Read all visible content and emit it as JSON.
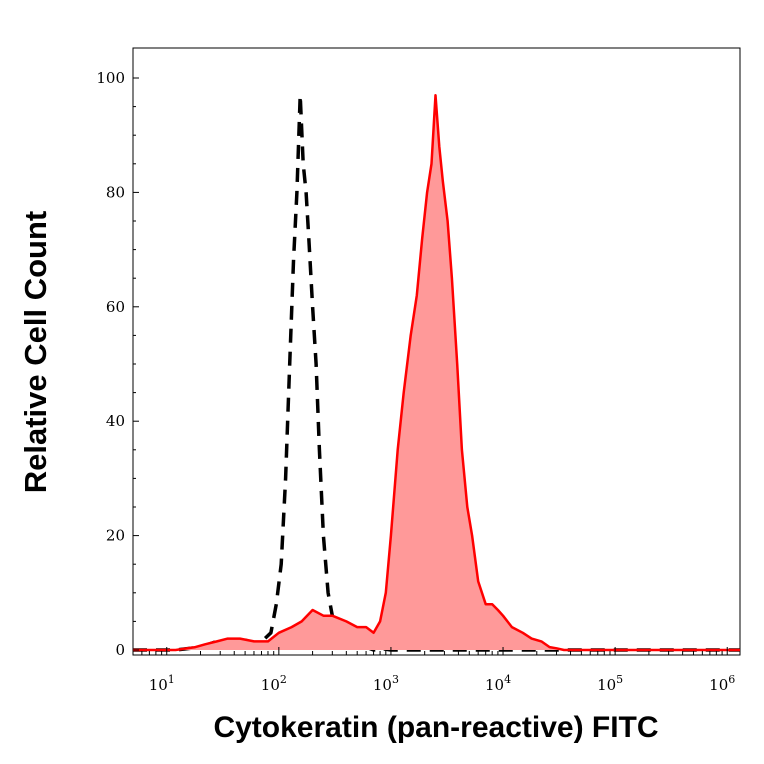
{
  "chart_data": {
    "type": "area",
    "xlabel": "Cytokeratin (pan-reactive) FITC",
    "ylabel": "Relative Cell Count",
    "x_scale": "log",
    "xlim": [
      5,
      1300000
    ],
    "ylim": [
      0,
      100
    ],
    "x_ticks": [
      {
        "base": "10",
        "exp": "1",
        "value": 10
      },
      {
        "base": "10",
        "exp": "2",
        "value": 100
      },
      {
        "base": "10",
        "exp": "3",
        "value": 1000
      },
      {
        "base": "10",
        "exp": "4",
        "value": 10000
      },
      {
        "base": "10",
        "exp": "5",
        "value": 100000
      },
      {
        "base": "10",
        "exp": "6",
        "value": 1000000
      }
    ],
    "y_ticks": [
      "0",
      "20",
      "40",
      "60",
      "80",
      "100"
    ],
    "y_tick_values": [
      0,
      20,
      40,
      60,
      80,
      100
    ],
    "series": [
      {
        "style": "dashed-black",
        "color": "#000000",
        "x": [
          5,
          12,
          20,
          28,
          35,
          45,
          55,
          65,
          75,
          85,
          95,
          105,
          115,
          125,
          135,
          145,
          155,
          165,
          175,
          185,
          200,
          215,
          230,
          250,
          275,
          300,
          330,
          360,
          400,
          450,
          500,
          600,
          700,
          800,
          1000,
          1300000
        ],
        "y": [
          0,
          0,
          0.5,
          1.5,
          1,
          2,
          1.5,
          1,
          2,
          3,
          8,
          15,
          30,
          50,
          68,
          80,
          97,
          85,
          80,
          72,
          60,
          50,
          35,
          20,
          10,
          6,
          3,
          2,
          1.5,
          3,
          1,
          0.5,
          0,
          0.3,
          0,
          0
        ]
      },
      {
        "style": "filled-red",
        "color": "#ff0000",
        "fill": "#ff9999",
        "x": [
          5,
          12,
          18,
          22,
          28,
          35,
          45,
          60,
          80,
          100,
          130,
          160,
          200,
          250,
          300,
          400,
          500,
          600,
          700,
          800,
          900,
          1000,
          1150,
          1300,
          1500,
          1700,
          1900,
          2100,
          2300,
          2500,
          2700,
          2900,
          3200,
          3500,
          3900,
          4300,
          4800,
          5300,
          6000,
          7000,
          8000,
          9000,
          10000,
          12000,
          15000,
          18000,
          22000,
          26000,
          30000,
          35000,
          45000,
          60000,
          100000,
          1300000
        ],
        "y": [
          0,
          0,
          0.5,
          1,
          1.5,
          2,
          2,
          1.5,
          1.5,
          3,
          4,
          5,
          7,
          6,
          6,
          5,
          4,
          4,
          3,
          5,
          10,
          20,
          35,
          45,
          55,
          62,
          72,
          80,
          85,
          97,
          88,
          82,
          75,
          65,
          50,
          35,
          25,
          20,
          12,
          8,
          8,
          7,
          6,
          4,
          3,
          2,
          1.5,
          0.5,
          0.3,
          0,
          0,
          0,
          0,
          0
        ]
      }
    ]
  }
}
